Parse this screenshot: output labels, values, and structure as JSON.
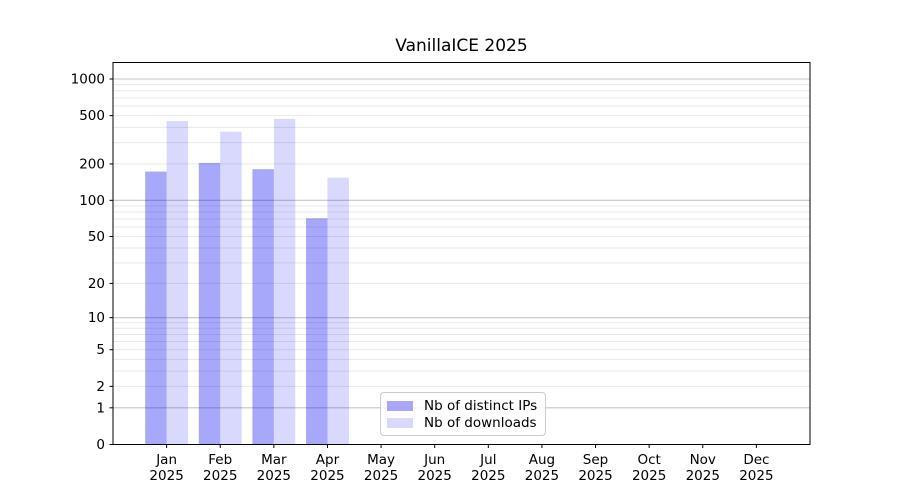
{
  "chart_data": {
    "type": "bar",
    "title": "VanillaICE 2025",
    "year": "2025",
    "categories": [
      "Jan 2025",
      "Feb 2025",
      "Mar 2025",
      "Apr 2025",
      "May 2025",
      "Jun 2025",
      "Jul 2025",
      "Aug 2025",
      "Sep 2025",
      "Oct 2025",
      "Nov 2025",
      "Dec 2025"
    ],
    "months": [
      "Jan",
      "Feb",
      "Mar",
      "Apr",
      "May",
      "Jun",
      "Jul",
      "Aug",
      "Sep",
      "Oct",
      "Nov",
      "Dec"
    ],
    "series": [
      {
        "name": "Nb of distinct IPs",
        "color": "rgba(0,0,240,0.34)",
        "values": [
          173,
          204,
          181,
          71,
          0,
          0,
          0,
          0,
          0,
          0,
          0,
          0
        ]
      },
      {
        "name": "Nb of downloads",
        "color": "rgba(0,0,240,0.15)",
        "values": [
          452,
          369,
          470,
          154,
          0,
          0,
          0,
          0,
          0,
          0,
          0,
          0
        ]
      }
    ],
    "xlabel": "",
    "ylabel": "",
    "y_ticks": [
      0,
      1,
      2,
      5,
      10,
      20,
      50,
      100,
      200,
      500,
      1000
    ],
    "y_scale": "log10(1+x)",
    "ylim": [
      0,
      1370
    ],
    "grid": "horizontal major+minor",
    "legend_position": "lower center-left inside plot",
    "colors": {
      "spine": "#000000",
      "tick_text": "#000000",
      "grid_major": "#c6c6c6",
      "grid_minor": "#e9e9e9",
      "background": "#ffffff"
    }
  }
}
